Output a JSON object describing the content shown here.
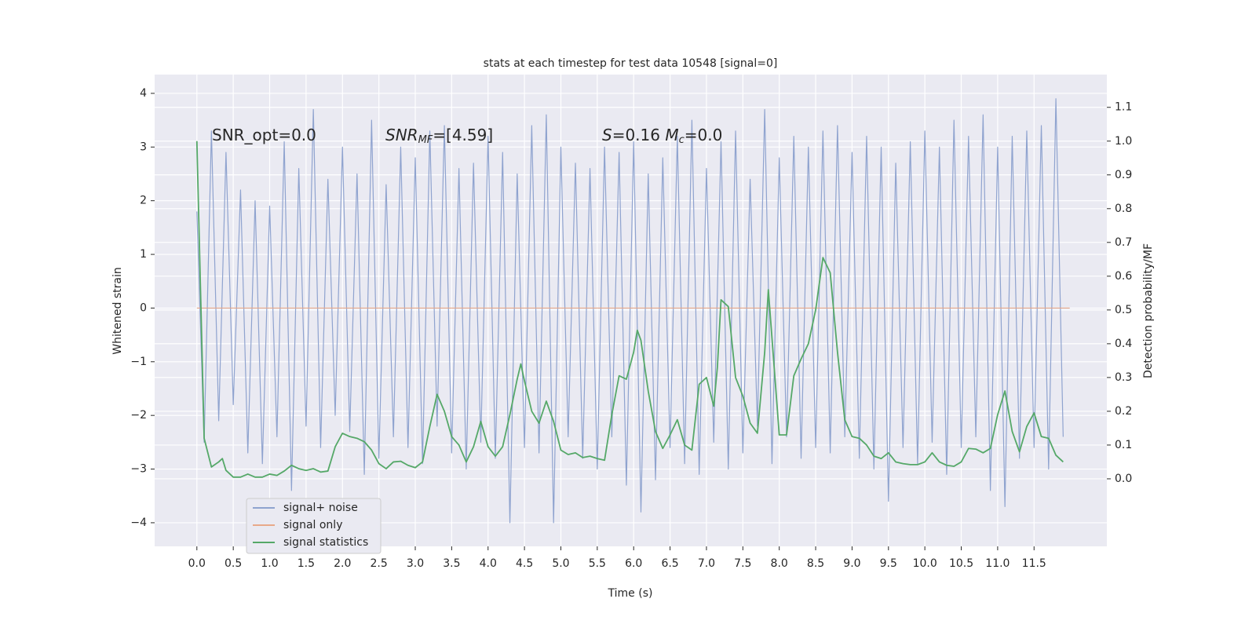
{
  "chart_data": {
    "type": "line",
    "title": "stats at each timestep for test data 10548 [signal=0]",
    "xlabel": "Time (s)",
    "ylabel": "Whitened strain",
    "y2label": "Detection probability/MF",
    "annotations": [
      [
        "SNR_opt=0.0"
      ],
      [
        "SNR",
        "MF",
        "=[4.59]"
      ],
      [
        "S",
        "=0.16   ",
        "M",
        "c",
        "=0.0"
      ]
    ],
    "xlim": [
      -0.58,
      12.5
    ],
    "ylim": [
      -4.44,
      4.35
    ],
    "y2lim": [
      -0.2,
      1.197
    ],
    "xticks": [
      {
        "value": 0,
        "label": "0.0"
      },
      0.5,
      {
        "value": 1,
        "label": "1.0"
      },
      1.5,
      {
        "value": 2,
        "label": "2.0"
      },
      2.5,
      {
        "value": 3,
        "label": "3.0"
      },
      3.5,
      {
        "value": 4,
        "label": "4.0"
      },
      4.5,
      {
        "value": 5,
        "label": "5.0"
      },
      5.5,
      {
        "value": 6,
        "label": "6.0"
      },
      6.5,
      {
        "value": 7,
        "label": "7.0"
      },
      7.5,
      {
        "value": 8,
        "label": "8.0"
      },
      8.5,
      {
        "value": 9,
        "label": "9.0"
      },
      9.5,
      {
        "value": 10,
        "label": "10.0"
      },
      10.5,
      {
        "value": 11,
        "label": "11.0"
      },
      11.5
    ],
    "yticks": [
      {
        "value": -4,
        "label": "−4"
      },
      {
        "value": -3,
        "label": "−3"
      },
      {
        "value": -2,
        "label": "−2"
      },
      {
        "value": -1,
        "label": "−1"
      },
      0,
      1,
      2,
      3,
      4
    ],
    "y2ticks": [
      {
        "value": 0,
        "label": "0.0"
      },
      0.1,
      0.2,
      0.3,
      0.4,
      0.5,
      0.6,
      0.7,
      0.8,
      0.9,
      {
        "value": 1,
        "label": "1.0"
      },
      1.1
    ],
    "grid": true,
    "legend": "lower left",
    "series": [
      {
        "name": "signal+ noise",
        "color": "#8fa3cf",
        "x": [
          0,
          0.1,
          0.2,
          0.3,
          0.4,
          0.5,
          0.6,
          0.7,
          0.8,
          0.9,
          1,
          1.1,
          1.2,
          1.3,
          1.4,
          1.5,
          1.6,
          1.7,
          1.8,
          1.9,
          2,
          2.1,
          2.2,
          2.3,
          2.4,
          2.5,
          2.6,
          2.7,
          2.8,
          2.9,
          3,
          3.1,
          3.2,
          3.3,
          3.4,
          3.5,
          3.6,
          3.7,
          3.8,
          3.9,
          4,
          4.1,
          4.2,
          4.3,
          4.4,
          4.5,
          4.6,
          4.7,
          4.8,
          4.9,
          5,
          5.1,
          5.2,
          5.3,
          5.4,
          5.5,
          5.6,
          5.7,
          5.8,
          5.9,
          6,
          6.1,
          6.2,
          6.3,
          6.4,
          6.5,
          6.6,
          6.7,
          6.8,
          6.9,
          7,
          7.1,
          7.2,
          7.3,
          7.4,
          7.5,
          7.6,
          7.7,
          7.8,
          7.9,
          8,
          8.1,
          8.2,
          8.3,
          8.4,
          8.5,
          8.6,
          8.7,
          8.8,
          8.9,
          9,
          9.1,
          9.2,
          9.3,
          9.4,
          9.5,
          9.6,
          9.7,
          9.8,
          9.9,
          10,
          10.1,
          10.2,
          10.3,
          10.4,
          10.5,
          10.6,
          10.7,
          10.8,
          10.9,
          11,
          11.1,
          11.2,
          11.3,
          11.4,
          11.5,
          11.6,
          11.7,
          11.8,
          11.9
        ],
        "values": [
          1.8,
          -2.5,
          3.3,
          -2.1,
          2.9,
          -1.8,
          2.2,
          -2.7,
          2.0,
          -2.9,
          1.9,
          -2.4,
          3.1,
          -3.4,
          2.6,
          -2.2,
          3.7,
          -2.6,
          2.4,
          -2.0,
          3.0,
          -2.3,
          2.5,
          -3.1,
          3.5,
          -2.8,
          2.3,
          -2.4,
          3.0,
          -2.6,
          2.8,
          -2.9,
          3.3,
          -2.2,
          3.4,
          -2.7,
          2.6,
          -3.0,
          2.7,
          -2.5,
          3.2,
          -2.8,
          2.9,
          -4.0,
          2.5,
          -2.6,
          3.4,
          -2.7,
          3.6,
          -4.0,
          3.0,
          -2.4,
          2.7,
          -2.8,
          2.6,
          -3.0,
          3.0,
          -2.4,
          2.9,
          -3.3,
          3.1,
          -3.8,
          2.5,
          -3.2,
          2.8,
          -2.6,
          3.2,
          -2.9,
          3.5,
          -3.1,
          2.6,
          -2.5,
          3.1,
          -3.0,
          3.3,
          -2.7,
          2.4,
          -2.2,
          3.7,
          -2.9,
          2.8,
          -2.4,
          3.2,
          -2.8,
          3.0,
          -2.6,
          3.3,
          -2.7,
          3.4,
          -2.4,
          2.9,
          -2.8,
          3.2,
          -3.0,
          3.0,
          -3.6,
          2.7,
          -2.6,
          3.1,
          -2.9,
          3.3,
          -2.5,
          3.0,
          -3.1,
          3.5,
          -2.6,
          3.2,
          -2.4,
          3.6,
          -3.4,
          3.0,
          -3.7,
          3.2,
          -2.8,
          3.3,
          -2.6,
          3.4,
          -3.0,
          3.9,
          -2.4
        ]
      },
      {
        "name": "signal only",
        "color": "#e8a98a",
        "x": [
          0,
          11.99
        ],
        "values": [
          0,
          0
        ]
      },
      {
        "name": "signal statistics",
        "color": "#55a868",
        "axis": "y2",
        "x": [
          0,
          0.1,
          0.2,
          0.3,
          0.35,
          0.4,
          0.5,
          0.6,
          0.7,
          0.8,
          0.9,
          1,
          1.1,
          1.2,
          1.3,
          1.4,
          1.5,
          1.6,
          1.7,
          1.8,
          1.9,
          2,
          2.1,
          2.2,
          2.3,
          2.4,
          2.5,
          2.6,
          2.7,
          2.8,
          2.9,
          3,
          3.1,
          3.2,
          3.3,
          3.4,
          3.5,
          3.6,
          3.7,
          3.8,
          3.9,
          4,
          4.1,
          4.2,
          4.3,
          4.4,
          4.45,
          4.5,
          4.6,
          4.7,
          4.8,
          4.9,
          5,
          5.1,
          5.2,
          5.3,
          5.4,
          5.5,
          5.6,
          5.7,
          5.8,
          5.9,
          6,
          6.05,
          6.1,
          6.2,
          6.3,
          6.4,
          6.5,
          6.6,
          6.7,
          6.8,
          6.9,
          7,
          7.1,
          7.15,
          7.2,
          7.3,
          7.4,
          7.5,
          7.6,
          7.7,
          7.8,
          7.85,
          8,
          8.1,
          8.2,
          8.3,
          8.4,
          8.5,
          8.6,
          8.7,
          8.8,
          8.9,
          9,
          9.1,
          9.2,
          9.3,
          9.4,
          9.5,
          9.6,
          9.7,
          9.8,
          9.9,
          10,
          10.1,
          10.2,
          10.3,
          10.4,
          10.5,
          10.6,
          10.7,
          10.8,
          10.9,
          11,
          11.1,
          11.2,
          11.3,
          11.4,
          11.5,
          11.6,
          11.7,
          11.8,
          11.9
        ],
        "values": [
          1.0,
          0.12,
          0.035,
          0.05,
          0.06,
          0.025,
          0.005,
          0.005,
          0.014,
          0.005,
          0.005,
          0.014,
          0.01,
          0.023,
          0.04,
          0.03,
          0.025,
          0.03,
          0.02,
          0.023,
          0.095,
          0.135,
          0.125,
          0.12,
          0.11,
          0.085,
          0.045,
          0.03,
          0.05,
          0.052,
          0.04,
          0.033,
          0.05,
          0.155,
          0.25,
          0.2,
          0.125,
          0.1,
          0.05,
          0.095,
          0.17,
          0.095,
          0.067,
          0.095,
          0.19,
          0.295,
          0.34,
          0.29,
          0.2,
          0.165,
          0.23,
          0.17,
          0.085,
          0.072,
          0.077,
          0.063,
          0.067,
          0.06,
          0.055,
          0.19,
          0.305,
          0.295,
          0.375,
          0.44,
          0.41,
          0.26,
          0.14,
          0.09,
          0.13,
          0.175,
          0.1,
          0.085,
          0.28,
          0.3,
          0.215,
          0.33,
          0.53,
          0.51,
          0.3,
          0.245,
          0.165,
          0.135,
          0.375,
          0.56,
          0.13,
          0.13,
          0.305,
          0.355,
          0.4,
          0.5,
          0.655,
          0.61,
          0.375,
          0.175,
          0.125,
          0.12,
          0.1,
          0.067,
          0.06,
          0.077,
          0.05,
          0.045,
          0.042,
          0.042,
          0.05,
          0.077,
          0.05,
          0.04,
          0.037,
          0.05,
          0.09,
          0.088,
          0.077,
          0.09,
          0.19,
          0.26,
          0.14,
          0.08,
          0.155,
          0.195,
          0.125,
          0.12,
          0.07,
          0.05
        ]
      }
    ]
  }
}
